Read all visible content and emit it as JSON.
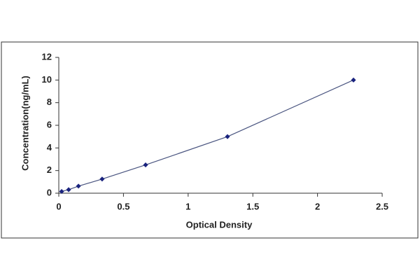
{
  "chart_data": {
    "type": "scatter",
    "x_label": "Optical Density",
    "y_label": "Concentration(ng/mL)",
    "series": [
      {
        "color": "#1a237e",
        "x": [
          0.022,
          0.076,
          0.152,
          0.335,
          0.671,
          1.304,
          2.278
        ],
        "values": [
          0.156,
          0.312,
          0.625,
          1.25,
          2.5,
          5,
          10
        ]
      }
    ],
    "xlim": [
      0,
      2.5
    ],
    "xticks": [
      0,
      0.5,
      1,
      1.5,
      2,
      2.5
    ],
    "ylim": [
      0,
      12
    ],
    "yticks": [
      0,
      2,
      4,
      6,
      8,
      10,
      12
    ],
    "grid": false,
    "line": true
  }
}
